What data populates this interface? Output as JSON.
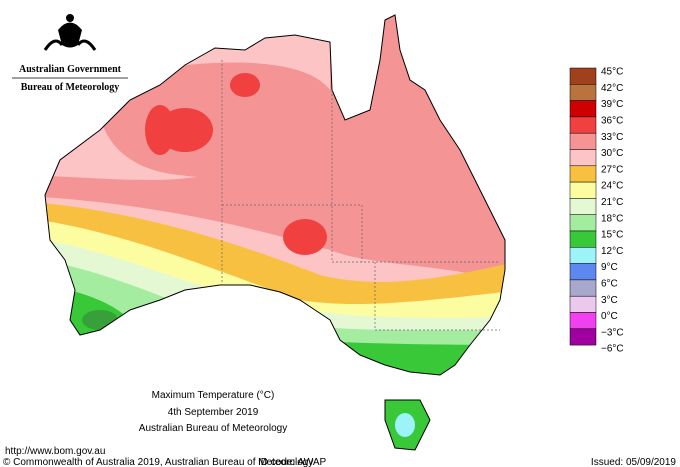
{
  "header": {
    "agency": "Australian Government",
    "bureau": "Bureau of Meteorology"
  },
  "title": {
    "line1": "Maximum Temperature (°C)",
    "line2": "4th September 2019",
    "line3": "Australian Bureau of Meteorology"
  },
  "legend": [
    {
      "label": "45°C",
      "color": "#a0401c"
    },
    {
      "label": "42°C",
      "color": "#b8743c"
    },
    {
      "label": "39°C",
      "color": "#d00000"
    },
    {
      "label": "36°C",
      "color": "#f04040"
    },
    {
      "label": "33°C",
      "color": "#f49494"
    },
    {
      "label": "30°C",
      "color": "#fcc4c4"
    },
    {
      "label": "27°C",
      "color": "#f8c040"
    },
    {
      "label": "24°C",
      "color": "#fcfca0"
    },
    {
      "label": "21°C",
      "color": "#e4f8d4"
    },
    {
      "label": "18°C",
      "color": "#a4eca0"
    },
    {
      "label": "15°C",
      "color": "#38c838"
    },
    {
      "label": "12°C",
      "color": "#9cf4f8"
    },
    {
      "label": "9°C",
      "color": "#5c88f0"
    },
    {
      "label": "6°C",
      "color": "#a8a8cc"
    },
    {
      "label": "3°C",
      "color": "#ecc8ec"
    },
    {
      "label": "0°C",
      "color": "#f040f0"
    },
    {
      "label": "−3°C",
      "color": "#a000a0"
    },
    {
      "label": "−6°C",
      "color": null
    }
  ],
  "footer": {
    "url": "http://www.bom.gov.au",
    "copyright": "© Commonwealth of Australia 2019, Australian Bureau of Meteorology",
    "id_code": "ID code: AWAP",
    "issued": "Issued: 05/09/2019"
  }
}
